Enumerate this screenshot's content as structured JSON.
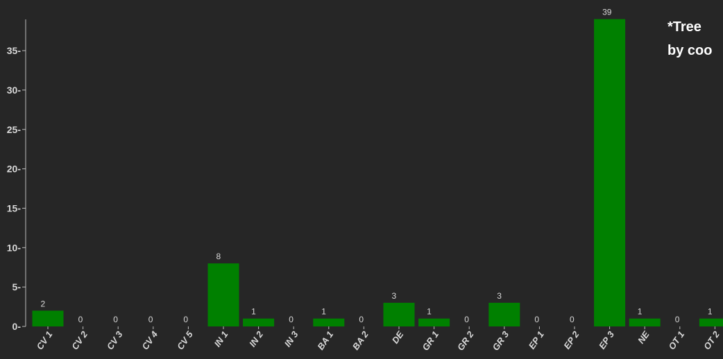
{
  "chart_data": {
    "type": "bar",
    "categories": [
      "CV 1",
      "CV 2",
      "CV 3",
      "CV 4",
      "CV 5",
      "IN 1",
      "IN 2",
      "IN 3",
      "BA 1",
      "BA 2",
      "DE",
      "GR 1",
      "GR 2",
      "GR 3",
      "EP 1",
      "EP 2",
      "EP 3",
      "NE",
      "OT 1",
      "OT 2"
    ],
    "values": [
      2,
      0,
      0,
      0,
      0,
      8,
      1,
      0,
      1,
      0,
      3,
      1,
      0,
      3,
      0,
      0,
      39,
      1,
      0,
      1
    ],
    "ylim": [
      0,
      39.5
    ],
    "yticks": [
      0,
      5,
      10,
      15,
      20,
      25,
      30,
      35
    ],
    "bar_color": "#008000",
    "grid": false,
    "data_labels": true
  },
  "annotation": {
    "line1": "*Tree",
    "line2": "by coo"
  }
}
